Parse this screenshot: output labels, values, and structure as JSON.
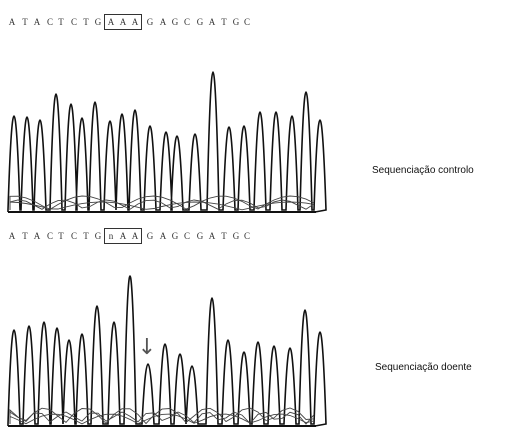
{
  "control": {
    "sequence": [
      "A",
      "T",
      "A",
      "C",
      "T",
      "C",
      "T",
      "G",
      "A",
      "A",
      "A",
      "G",
      "A",
      "G",
      "C",
      "G",
      "A",
      "T",
      "G",
      "C"
    ],
    "label": "Sequenciação controlo"
  },
  "patient": {
    "sequence": [
      "A",
      "T",
      "A",
      "C",
      "T",
      "C",
      "T",
      "G",
      "n",
      "A",
      "A",
      "G",
      "A",
      "G",
      "C",
      "G",
      "A",
      "T",
      "G",
      "C"
    ],
    "label": "Sequenciação doente",
    "mutation_marker": "↓"
  },
  "colors": {
    "trace": "#111111",
    "secondary": "#444444",
    "box": "#333333"
  }
}
